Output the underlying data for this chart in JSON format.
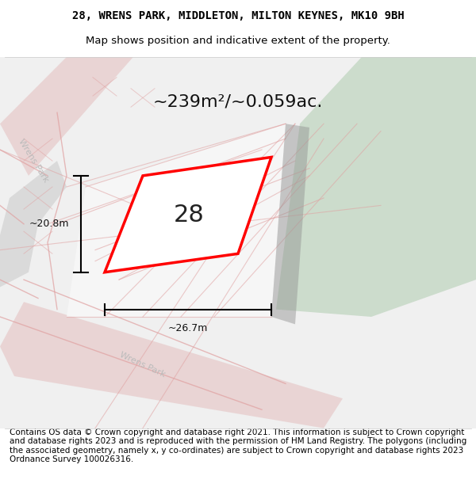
{
  "title_line1": "28, WRENS PARK, MIDDLETON, MILTON KEYNES, MK10 9BH",
  "title_line2": "Map shows position and indicative extent of the property.",
  "footer_text": "Contains OS data © Crown copyright and database right 2021. This information is subject to Crown copyright and database rights 2023 and is reproduced with the permission of HM Land Registry. The polygons (including the associated geometry, namely x, y co-ordinates) are subject to Crown copyright and database rights 2023 Ordnance Survey 100026316.",
  "area_label": "~239m²/~0.059ac.",
  "plot_number": "28",
  "dim_width": "~26.7m",
  "dim_height": "~20.8m",
  "road_label_top": "Wrens Park",
  "road_label_bottom": "Wrens Park",
  "map_bg": "#f0f0f0",
  "green_area_color": "#ccdccc",
  "road_fill": "#e8d0d0",
  "plot_outline_color": "#ff0000",
  "plot_fill_color": "#ffffff",
  "pink_line": "#e0a0a0",
  "title_fontsize": 10,
  "footer_fontsize": 7.5,
  "area_fontsize": 16,
  "plot_num_fontsize": 22,
  "dim_fontsize": 9,
  "road_fontsize": 8
}
